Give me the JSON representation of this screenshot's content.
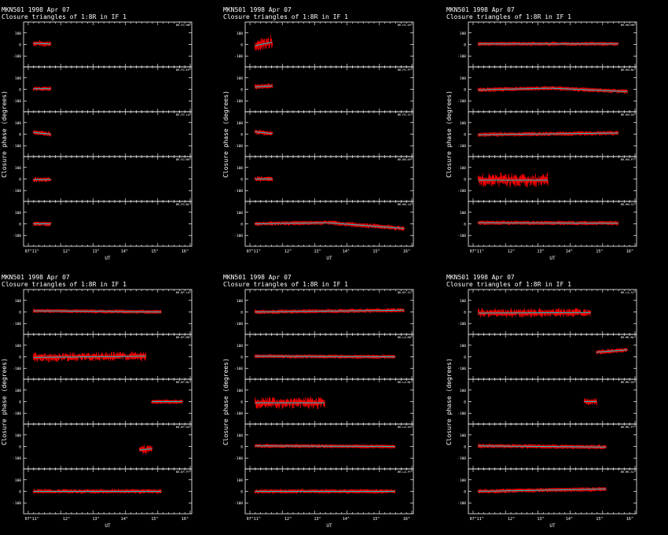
{
  "figure": {
    "source": "MKN501",
    "date": "1998 Apr 07",
    "subtitle": "Closure triangles of 1:8R in IF 1",
    "xlabel": "UT",
    "ylabel": "Closure phase   (degrees)",
    "x_ticks": [
      "07^11^",
      "12^",
      "13^",
      "14^",
      "15^",
      "16^"
    ],
    "y_ticks": [
      "100",
      "0",
      "-100"
    ],
    "colors": {
      "background": "#000000",
      "frame": "#ffffff",
      "observed": "#ff0000",
      "model": "#00c8c8"
    }
  },
  "chart_data": [
    {
      "type": "line",
      "title": "MKN501   1998 Apr 07",
      "subtitle": "Closure triangles of 1:8R in IF 1",
      "xlabel": "UT",
      "ylabel": "Closure phase   (degrees)",
      "xlim": [
        11.0,
        16.0
      ],
      "ylim": [
        -180,
        180
      ],
      "panels": [
        {
          "label": "BR-FD-HN",
          "segments": [
            {
              "x0": 11.12,
              "x1": 11.68,
              "y0": 10,
              "y1": 5,
              "noise": 8
            }
          ]
        },
        {
          "label": "BR-FD-KP",
          "segments": [
            {
              "x0": 11.12,
              "x1": 11.68,
              "y0": 5,
              "y1": 5,
              "noise": 5
            }
          ]
        },
        {
          "label": "BR-FD-LA",
          "segments": [
            {
              "x0": 11.12,
              "x1": 11.68,
              "y0": 15,
              "y1": 0,
              "noise": 6
            }
          ]
        },
        {
          "label": "BR-FD-MK",
          "segments": [
            {
              "x0": 11.12,
              "x1": 11.68,
              "y0": -5,
              "y1": -5,
              "noise": 6
            }
          ]
        },
        {
          "label": "BR-FD-NL",
          "segments": [
            {
              "x0": 11.12,
              "x1": 11.68,
              "y0": 0,
              "y1": 0,
              "noise": 6
            }
          ]
        }
      ]
    },
    {
      "type": "line",
      "title": "MKN501   1998 Apr 07",
      "subtitle": "Closure triangles of 1:8R in IF 1",
      "xlabel": "UT",
      "ylabel": "Closure phase   (degrees)",
      "xlim": [
        11.0,
        16.0
      ],
      "ylim": [
        -180,
        180
      ],
      "panels": [
        {
          "label": "BR-FD-OV",
          "segments": [
            {
              "x0": 11.12,
              "x1": 11.68,
              "y0": -10,
              "y1": 20,
              "noise": 25
            }
          ]
        },
        {
          "label": "BR-FD-PT",
          "segments": [
            {
              "x0": 11.12,
              "x1": 11.68,
              "y0": 20,
              "y1": 30,
              "noise": 8
            }
          ]
        },
        {
          "label": "BR-FD-SC",
          "segments": [
            {
              "x0": 11.12,
              "x1": 11.68,
              "y0": 20,
              "y1": 5,
              "noise": 6
            }
          ]
        },
        {
          "label": "BR-HN-KP",
          "segments": [
            {
              "x0": 11.12,
              "x1": 11.68,
              "y0": 0,
              "y1": 0,
              "noise": 6
            }
          ]
        },
        {
          "label": "BR-HN-LA",
          "segments": [
            {
              "x0": 11.12,
              "x1": 13.5,
              "y0": 0,
              "y1": 10,
              "noise": 5
            },
            {
              "x0": 13.5,
              "x1": 16.0,
              "y0": 10,
              "y1": -40,
              "noise": 6
            }
          ]
        }
      ]
    },
    {
      "type": "line",
      "title": "MKN501   1998 Apr 07",
      "subtitle": "Closure triangles of 1:8R in IF 1",
      "xlabel": "UT",
      "ylabel": "Closure phase   (degrees)",
      "xlim": [
        11.0,
        16.0
      ],
      "ylim": [
        -180,
        180
      ],
      "panels": [
        {
          "label": "BR-HN-MK",
          "segments": [
            {
              "x0": 11.12,
              "x1": 15.7,
              "y0": 5,
              "y1": 5,
              "noise": 4
            }
          ]
        },
        {
          "label": "BR-HN-NL",
          "segments": [
            {
              "x0": 11.12,
              "x1": 13.5,
              "y0": -5,
              "y1": 10,
              "noise": 5
            },
            {
              "x0": 13.5,
              "x1": 16.0,
              "y0": 10,
              "y1": -20,
              "noise": 5
            }
          ]
        },
        {
          "label": "BR-HN-OV",
          "segments": [
            {
              "x0": 11.12,
              "x1": 15.7,
              "y0": -5,
              "y1": 10,
              "noise": 5
            }
          ]
        },
        {
          "label": "BR-HN-PT",
          "segments": [
            {
              "x0": 11.12,
              "x1": 13.4,
              "y0": -10,
              "y1": -10,
              "noise": 25
            }
          ]
        },
        {
          "label": "BR-HN-SC",
          "segments": [
            {
              "x0": 11.12,
              "x1": 15.7,
              "y0": 10,
              "y1": 5,
              "noise": 5
            }
          ]
        }
      ]
    },
    {
      "type": "line",
      "title": "MKN501   1998 Apr 07",
      "subtitle": "Closure triangles of 1:8R in IF 1",
      "xlabel": "UT",
      "ylabel": "Closure phase   (degrees)",
      "xlim": [
        11.0,
        16.0
      ],
      "ylim": [
        -180,
        180
      ],
      "panels": [
        {
          "label": "BR-KP-LA",
          "segments": [
            {
              "x0": 11.12,
              "x1": 15.3,
              "y0": 10,
              "y1": 0,
              "noise": 4
            }
          ]
        },
        {
          "label": "BR-KP-MK",
          "segments": [
            {
              "x0": 11.12,
              "x1": 14.8,
              "y0": -5,
              "y1": 5,
              "noise": 15
            }
          ]
        },
        {
          "label": "BR-KP-NL",
          "segments": [
            {
              "x0": 15.0,
              "x1": 16.0,
              "y0": 0,
              "y1": 0,
              "noise": 5
            }
          ]
        },
        {
          "label": "BR-KP-OV",
          "segments": [
            {
              "x0": 14.6,
              "x1": 15.0,
              "y0": -30,
              "y1": -20,
              "noise": 15
            }
          ]
        },
        {
          "label": "BR-KP-PT",
          "segments": [
            {
              "x0": 11.12,
              "x1": 15.3,
              "y0": 0,
              "y1": 0,
              "noise": 5
            }
          ]
        }
      ]
    },
    {
      "type": "line",
      "title": "MKN501   1998 Apr 07",
      "subtitle": "Closure triangles of 1:8R in IF 1",
      "xlabel": "UT",
      "ylabel": "Closure phase   (degrees)",
      "xlim": [
        11.0,
        16.0
      ],
      "ylim": [
        -180,
        180
      ],
      "panels": [
        {
          "label": "BR-KP-SC",
          "segments": [
            {
              "x0": 11.12,
              "x1": 16.0,
              "y0": 0,
              "y1": 15,
              "noise": 5
            }
          ]
        },
        {
          "label": "BR-LA-MK",
          "segments": [
            {
              "x0": 11.12,
              "x1": 15.7,
              "y0": 5,
              "y1": 0,
              "noise": 4
            }
          ]
        },
        {
          "label": "BR-LA-NL",
          "segments": [
            {
              "x0": 11.12,
              "x1": 13.4,
              "y0": -10,
              "y1": -10,
              "noise": 20
            }
          ]
        },
        {
          "label": "BR-LA-OV",
          "segments": [
            {
              "x0": 11.12,
              "x1": 15.7,
              "y0": 5,
              "y1": 0,
              "noise": 4
            }
          ]
        },
        {
          "label": "BR-LA-PT",
          "segments": [
            {
              "x0": 11.12,
              "x1": 15.7,
              "y0": 0,
              "y1": 0,
              "noise": 5
            }
          ]
        }
      ]
    },
    {
      "type": "line",
      "title": "MKN501   1998 Apr 07",
      "subtitle": "Closure triangles of 1:8R in IF 1",
      "xlabel": "UT",
      "ylabel": "Closure phase   (degrees)",
      "xlim": [
        11.0,
        16.0
      ],
      "ylim": [
        -180,
        180
      ],
      "panels": [
        {
          "label": "BR-LA-SC",
          "segments": [
            {
              "x0": 11.12,
              "x1": 14.8,
              "y0": -10,
              "y1": -5,
              "noise": 15
            }
          ]
        },
        {
          "label": "BR-MK-NL",
          "segments": [
            {
              "x0": 15.0,
              "x1": 16.0,
              "y0": 40,
              "y1": 60,
              "noise": 6
            }
          ]
        },
        {
          "label": "BR-MK-OV",
          "segments": [
            {
              "x0": 14.6,
              "x1": 15.0,
              "y0": 0,
              "y1": 0,
              "noise": 10
            }
          ]
        },
        {
          "label": "BR-MK-PT",
          "segments": [
            {
              "x0": 11.12,
              "x1": 15.3,
              "y0": 5,
              "y1": -5,
              "noise": 5
            }
          ]
        },
        {
          "label": "BR-MK-SC",
          "segments": [
            {
              "x0": 11.12,
              "x1": 15.3,
              "y0": 0,
              "y1": 20,
              "noise": 5
            }
          ]
        }
      ]
    }
  ]
}
